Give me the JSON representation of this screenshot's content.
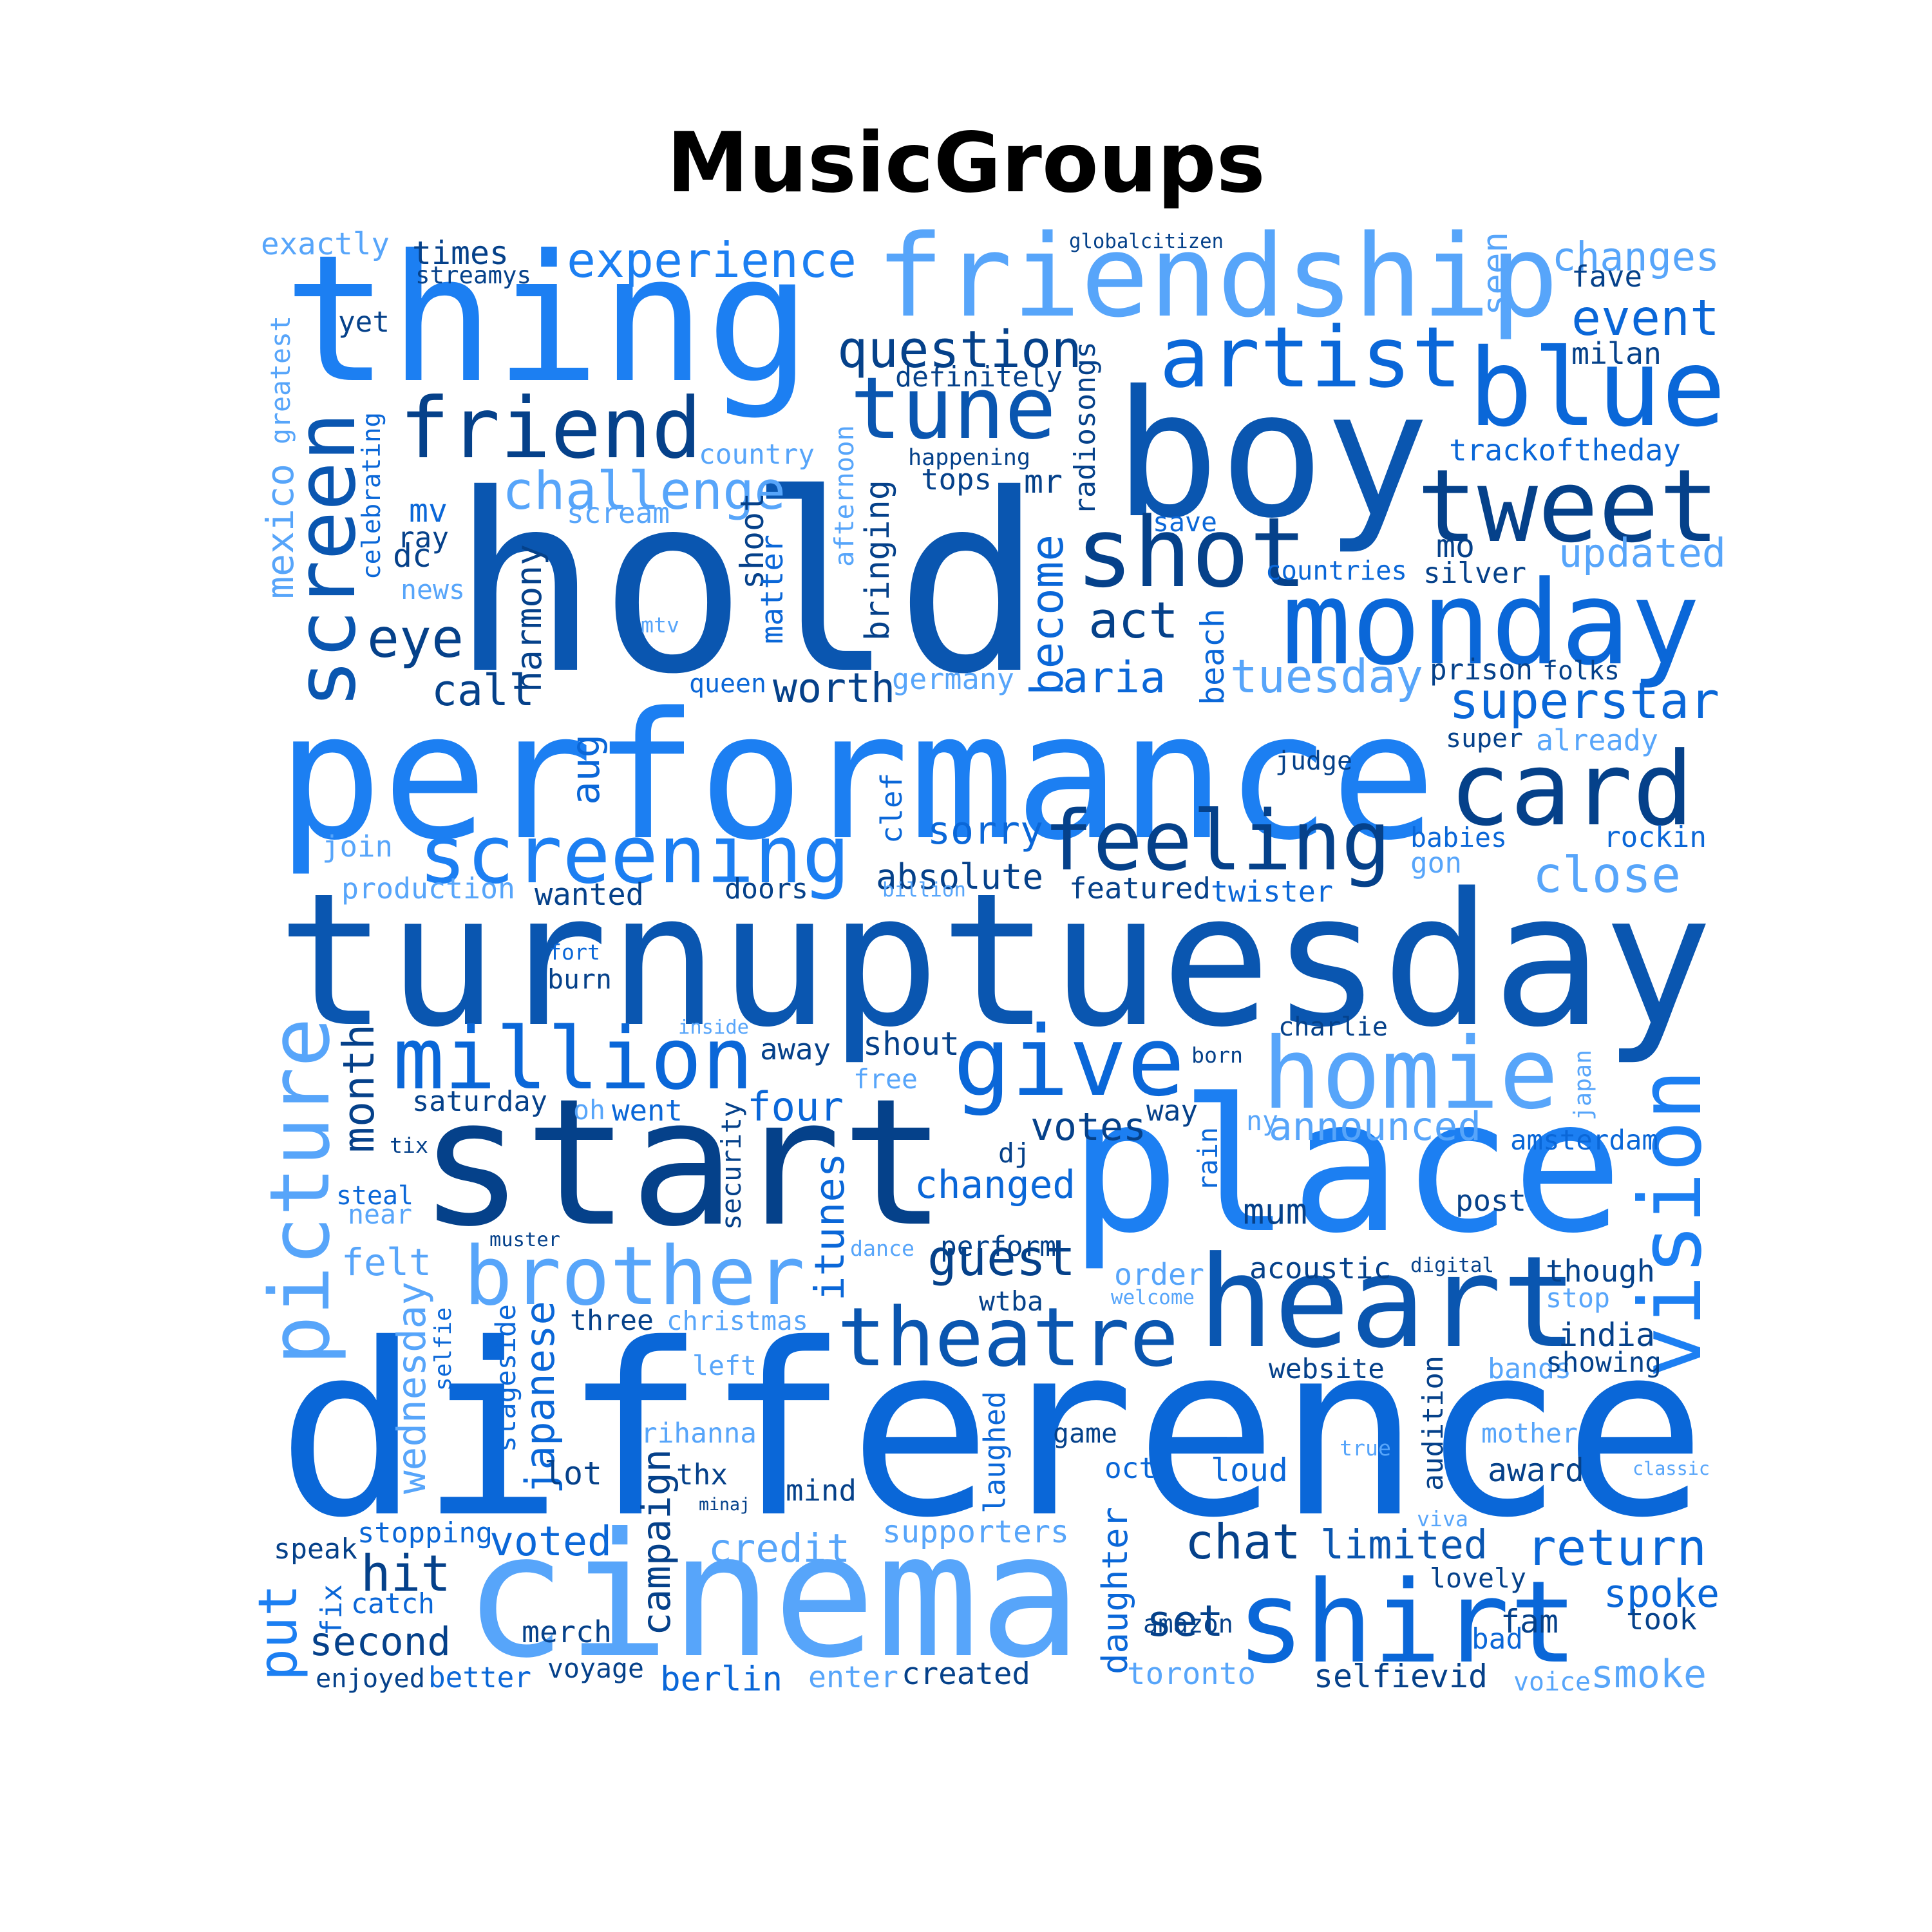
{
  "title": "MusicGroups",
  "palette": {
    "c1": "#57a5fa",
    "c2": "#1c7ff2",
    "c3": "#0a67d8",
    "c4": "#0a56b0",
    "c5": "#05418a"
  },
  "words": [
    {
      "text": "turnuptuesday",
      "c": "c4"
    },
    {
      "text": "difference",
      "c": "c3"
    },
    {
      "text": "performance",
      "c": "c2"
    },
    {
      "text": "hold",
      "c": "c4"
    },
    {
      "text": "start",
      "c": "c5"
    },
    {
      "text": "place",
      "c": "c2"
    },
    {
      "text": "boy",
      "c": "c4"
    },
    {
      "text": "thing",
      "c": "c2"
    },
    {
      "text": "cinema",
      "c": "c1"
    },
    {
      "text": "friendship",
      "c": "c1"
    },
    {
      "text": "heart",
      "c": "c4"
    },
    {
      "text": "shirt",
      "c": "c3"
    },
    {
      "text": "monday",
      "c": "c3"
    },
    {
      "text": "screening",
      "c": "c2"
    },
    {
      "text": "tweet",
      "c": "c5"
    },
    {
      "text": "brother",
      "c": "c1"
    },
    {
      "text": "homie",
      "c": "c1"
    },
    {
      "text": "card",
      "c": "c5"
    },
    {
      "text": "theatre",
      "c": "c4"
    },
    {
      "text": "give",
      "c": "c3"
    },
    {
      "text": "feeling",
      "c": "c5"
    },
    {
      "text": "blue",
      "c": "c3"
    },
    {
      "text": "artist",
      "c": "c3"
    },
    {
      "text": "shot",
      "c": "c5"
    },
    {
      "text": "million",
      "c": "c3"
    },
    {
      "text": "friend",
      "c": "c5"
    },
    {
      "text": "tune",
      "c": "c4"
    },
    {
      "text": "picture",
      "c": "c1"
    },
    {
      "text": "vision",
      "c": "c2"
    },
    {
      "text": "screen",
      "c": "c4"
    },
    {
      "text": "experience",
      "c": "c2"
    },
    {
      "text": "challenge",
      "c": "c1"
    },
    {
      "text": "question",
      "c": "c5"
    },
    {
      "text": "event",
      "c": "c3"
    },
    {
      "text": "changes",
      "c": "c1"
    },
    {
      "text": "superstar",
      "c": "c3"
    },
    {
      "text": "tuesday",
      "c": "c1"
    },
    {
      "text": "updated",
      "c": "c1"
    },
    {
      "text": "close",
      "c": "c1"
    },
    {
      "text": "return",
      "c": "c3"
    },
    {
      "text": "chat",
      "c": "c5"
    },
    {
      "text": "limited",
      "c": "c4"
    },
    {
      "text": "credit",
      "c": "c1"
    },
    {
      "text": "voted",
      "c": "c3"
    },
    {
      "text": "hit",
      "c": "c5"
    },
    {
      "text": "second",
      "c": "c5"
    },
    {
      "text": "guest",
      "c": "c5"
    },
    {
      "text": "changed",
      "c": "c3"
    },
    {
      "text": "votes",
      "c": "c5"
    },
    {
      "text": "announced",
      "c": "c1"
    },
    {
      "text": "aria",
      "c": "c3"
    },
    {
      "text": "act",
      "c": "c5"
    },
    {
      "text": "eye",
      "c": "c5"
    },
    {
      "text": "call",
      "c": "c5"
    },
    {
      "text": "worth",
      "c": "c5"
    },
    {
      "text": "sorry",
      "c": "c3"
    },
    {
      "text": "absolute",
      "c": "c5"
    },
    {
      "text": "become",
      "c": "c3"
    },
    {
      "text": "four",
      "c": "c3"
    },
    {
      "text": "month",
      "c": "c5"
    },
    {
      "text": "put",
      "c": "c2"
    },
    {
      "text": "set",
      "c": "c5"
    },
    {
      "text": "award",
      "c": "c5"
    },
    {
      "text": "spoke",
      "c": "c3"
    },
    {
      "text": "smoke",
      "c": "c1"
    },
    {
      "text": "merch",
      "c": "c5"
    },
    {
      "text": "loud",
      "c": "c3"
    },
    {
      "text": "daughter",
      "c": "c3"
    },
    {
      "text": "campaign",
      "c": "c5"
    },
    {
      "text": "japanese",
      "c": "c3"
    },
    {
      "text": "wednesday",
      "c": "c1"
    },
    {
      "text": "itunes",
      "c": "c3"
    },
    {
      "text": "felt",
      "c": "c1"
    },
    {
      "text": "lot",
      "c": "c5"
    },
    {
      "text": "mind",
      "c": "c5"
    },
    {
      "text": "perform",
      "c": "c5"
    },
    {
      "text": "acoustic",
      "c": "c5"
    },
    {
      "text": "though",
      "c": "c5"
    },
    {
      "text": "india",
      "c": "c5"
    },
    {
      "text": "post",
      "c": "c5"
    },
    {
      "text": "mum",
      "c": "c5"
    },
    {
      "text": "order",
      "c": "c1"
    },
    {
      "text": "toronto",
      "c": "c1"
    },
    {
      "text": "selfievid",
      "c": "c5"
    },
    {
      "text": "berlin",
      "c": "c3"
    },
    {
      "text": "created",
      "c": "c5"
    },
    {
      "text": "supporters",
      "c": "c1"
    },
    {
      "text": "exactly",
      "c": "c1"
    },
    {
      "text": "times",
      "c": "c5"
    },
    {
      "text": "streamys",
      "c": "c5"
    },
    {
      "text": "globalcitizen",
      "c": "c5"
    },
    {
      "text": "seen",
      "c": "c1"
    },
    {
      "text": "fave",
      "c": "c5"
    },
    {
      "text": "milan",
      "c": "c5"
    },
    {
      "text": "yet",
      "c": "c5"
    },
    {
      "text": "greatest",
      "c": "c1"
    },
    {
      "text": "definitely",
      "c": "c5"
    },
    {
      "text": "radiosongs",
      "c": "c5"
    },
    {
      "text": "celebrating",
      "c": "c3"
    },
    {
      "text": "country",
      "c": "c1"
    },
    {
      "text": "happening",
      "c": "c5"
    },
    {
      "text": "trackoftheday",
      "c": "c3"
    },
    {
      "text": "tops",
      "c": "c5"
    },
    {
      "text": "mr",
      "c": "c5"
    },
    {
      "text": "scream",
      "c": "c1"
    },
    {
      "text": "mexico",
      "c": "c1"
    },
    {
      "text": "mv",
      "c": "c3"
    },
    {
      "text": "ray",
      "c": "c5"
    },
    {
      "text": "dc",
      "c": "c5"
    },
    {
      "text": "news",
      "c": "c1"
    },
    {
      "text": "afternoon",
      "c": "c1"
    },
    {
      "text": "save",
      "c": "c3"
    },
    {
      "text": "mo",
      "c": "c5"
    },
    {
      "text": "countries",
      "c": "c3"
    },
    {
      "text": "silver",
      "c": "c5"
    },
    {
      "text": "bringing",
      "c": "c5"
    },
    {
      "text": "shoot",
      "c": "c5"
    },
    {
      "text": "matter",
      "c": "c3"
    },
    {
      "text": "harmony",
      "c": "c5"
    },
    {
      "text": "mtv",
      "c": "c1"
    },
    {
      "text": "beach",
      "c": "c3"
    },
    {
      "text": "queen",
      "c": "c3"
    },
    {
      "text": "germany",
      "c": "c1"
    },
    {
      "text": "prison",
      "c": "c5"
    },
    {
      "text": "folks",
      "c": "c5"
    },
    {
      "text": "super",
      "c": "c5"
    },
    {
      "text": "already",
      "c": "c1"
    },
    {
      "text": "judge",
      "c": "c5"
    },
    {
      "text": "aug",
      "c": "c3"
    },
    {
      "text": "clef",
      "c": "c3"
    },
    {
      "text": "join",
      "c": "c1"
    },
    {
      "text": "babies",
      "c": "c3"
    },
    {
      "text": "rockin",
      "c": "c3"
    },
    {
      "text": "gon",
      "c": "c1"
    },
    {
      "text": "production",
      "c": "c1"
    },
    {
      "text": "wanted",
      "c": "c5"
    },
    {
      "text": "doors",
      "c": "c5"
    },
    {
      "text": "billion",
      "c": "c1"
    },
    {
      "text": "featured",
      "c": "c5"
    },
    {
      "text": "twister",
      "c": "c3"
    },
    {
      "text": "fort",
      "c": "c3"
    },
    {
      "text": "burn",
      "c": "c5"
    },
    {
      "text": "inside",
      "c": "c1"
    },
    {
      "text": "charlie",
      "c": "c5"
    },
    {
      "text": "shout",
      "c": "c5"
    },
    {
      "text": "away",
      "c": "c5"
    },
    {
      "text": "free",
      "c": "c1"
    },
    {
      "text": "born",
      "c": "c5"
    },
    {
      "text": "japan",
      "c": "c1"
    },
    {
      "text": "saturday",
      "c": "c5"
    },
    {
      "text": "oh",
      "c": "c1"
    },
    {
      "text": "went",
      "c": "c3"
    },
    {
      "text": "security",
      "c": "c5"
    },
    {
      "text": "way",
      "c": "c5"
    },
    {
      "text": "ny",
      "c": "c1"
    },
    {
      "text": "amsterdam",
      "c": "c3"
    },
    {
      "text": "tix",
      "c": "c5"
    },
    {
      "text": "dj",
      "c": "c5"
    },
    {
      "text": "rain",
      "c": "c3"
    },
    {
      "text": "steal",
      "c": "c3"
    },
    {
      "text": "near",
      "c": "c1"
    },
    {
      "text": "muster",
      "c": "c5"
    },
    {
      "text": "dance",
      "c": "c1"
    },
    {
      "text": "digital",
      "c": "c5"
    },
    {
      "text": "welcome",
      "c": "c1"
    },
    {
      "text": "stop",
      "c": "c1"
    },
    {
      "text": "wtba",
      "c": "c5"
    },
    {
      "text": "selfie",
      "c": "c3"
    },
    {
      "text": "three",
      "c": "c5"
    },
    {
      "text": "christmas",
      "c": "c1"
    },
    {
      "text": "stageside",
      "c": "c3"
    },
    {
      "text": "left",
      "c": "c1"
    },
    {
      "text": "website",
      "c": "c5"
    },
    {
      "text": "audition",
      "c": "c5"
    },
    {
      "text": "bands",
      "c": "c1"
    },
    {
      "text": "showing",
      "c": "c5"
    },
    {
      "text": "rihanna",
      "c": "c1"
    },
    {
      "text": "laughed",
      "c": "c3"
    },
    {
      "text": "game",
      "c": "c5"
    },
    {
      "text": "oct",
      "c": "c3"
    },
    {
      "text": "true",
      "c": "c1"
    },
    {
      "text": "mother",
      "c": "c1"
    },
    {
      "text": "classic",
      "c": "c1"
    },
    {
      "text": "thx",
      "c": "c5"
    },
    {
      "text": "minaj",
      "c": "c5"
    },
    {
      "text": "viva",
      "c": "c1"
    },
    {
      "text": "stopping",
      "c": "c3"
    },
    {
      "text": "speak",
      "c": "c5"
    },
    {
      "text": "fix",
      "c": "c3"
    },
    {
      "text": "catch",
      "c": "c3"
    },
    {
      "text": "lovely",
      "c": "c5"
    },
    {
      "text": "fam",
      "c": "c5"
    },
    {
      "text": "took",
      "c": "c5"
    },
    {
      "text": "amazon",
      "c": "c5"
    },
    {
      "text": "bad",
      "c": "c3"
    },
    {
      "text": "enjoyed",
      "c": "c5"
    },
    {
      "text": "better",
      "c": "c3"
    },
    {
      "text": "voyage",
      "c": "c5"
    },
    {
      "text": "enter",
      "c": "c1"
    },
    {
      "text": "voice",
      "c": "c1"
    }
  ]
}
